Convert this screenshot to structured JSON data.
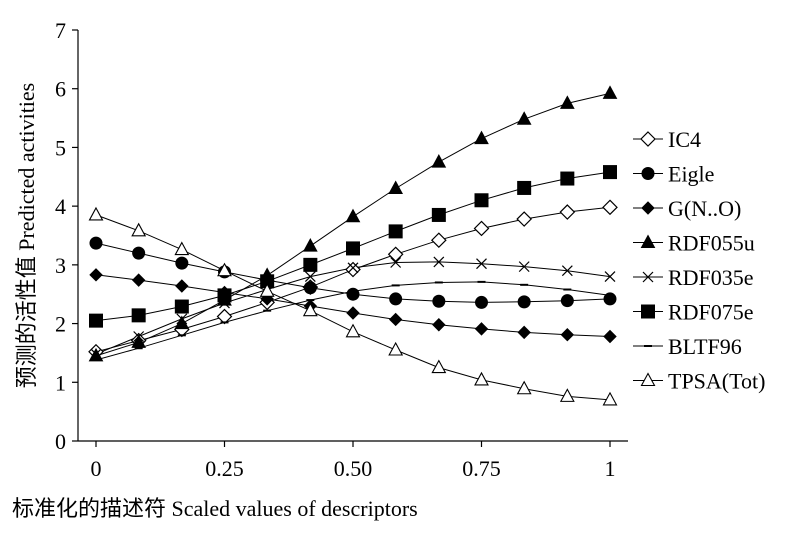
{
  "chart_data": {
    "type": "line",
    "title": "",
    "xlabel": "标准化的描述符  Scaled values of descriptors",
    "ylabel": "预测的活性值  Predicted activities",
    "xlim": [
      0,
      1
    ],
    "ylim": [
      0,
      7
    ],
    "x_ticks": [
      0,
      0.25,
      0.5,
      0.75,
      1
    ],
    "x_tick_labels": [
      "0",
      "0.25",
      "0.50",
      "0.75",
      "1"
    ],
    "y_ticks": [
      0,
      1,
      2,
      3,
      4,
      5,
      6,
      7
    ],
    "y_tick_labels": [
      "0",
      "1",
      "2",
      "3",
      "4",
      "5",
      "6",
      "7"
    ],
    "grid": false,
    "legend_position": "right",
    "x": [
      0,
      0.083,
      0.167,
      0.25,
      0.333,
      0.417,
      0.5,
      0.583,
      0.667,
      0.75,
      0.833,
      0.917,
      1
    ],
    "series": [
      {
        "name": "IC4",
        "marker": "diamond-open",
        "color": "#000000",
        "values": [
          1.52,
          1.71,
          1.9,
          2.12,
          2.36,
          2.62,
          2.92,
          3.18,
          3.42,
          3.62,
          3.78,
          3.9,
          3.98
        ]
      },
      {
        "name": "Eigle",
        "marker": "circle-filled",
        "color": "#000000",
        "values": [
          3.37,
          3.2,
          3.03,
          2.88,
          2.74,
          2.61,
          2.5,
          2.42,
          2.38,
          2.36,
          2.37,
          2.39,
          2.42
        ]
      },
      {
        "name": "G(N..O)",
        "marker": "diamond-filled",
        "color": "#000000",
        "values": [
          2.83,
          2.74,
          2.64,
          2.53,
          2.42,
          2.3,
          2.18,
          2.07,
          1.98,
          1.91,
          1.85,
          1.81,
          1.78
        ]
      },
      {
        "name": "RDF055u",
        "marker": "triangle-filled",
        "color": "#000000",
        "values": [
          1.45,
          1.68,
          2.0,
          2.4,
          2.82,
          3.32,
          3.82,
          4.3,
          4.75,
          5.15,
          5.48,
          5.75,
          5.92
        ]
      },
      {
        "name": "RDF035e",
        "marker": "x",
        "color": "#000000",
        "values": [
          1.48,
          1.78,
          2.08,
          2.35,
          2.58,
          2.8,
          2.95,
          3.04,
          3.05,
          3.02,
          2.97,
          2.9,
          2.8
        ]
      },
      {
        "name": "RDF075e",
        "marker": "square-filled",
        "color": "#000000",
        "values": [
          2.05,
          2.14,
          2.29,
          2.48,
          2.72,
          3.0,
          3.28,
          3.57,
          3.85,
          4.1,
          4.31,
          4.47,
          4.58
        ]
      },
      {
        "name": "BLTF96",
        "marker": "dash",
        "color": "#000000",
        "values": [
          1.38,
          1.58,
          1.8,
          2.02,
          2.22,
          2.4,
          2.55,
          2.65,
          2.7,
          2.71,
          2.66,
          2.58,
          2.48
        ]
      },
      {
        "name": "TPSA(Tot)",
        "marker": "triangle-open",
        "color": "#000000",
        "values": [
          3.85,
          3.58,
          3.26,
          2.9,
          2.55,
          2.22,
          1.86,
          1.55,
          1.25,
          1.04,
          0.89,
          0.76,
          0.7
        ]
      }
    ]
  }
}
